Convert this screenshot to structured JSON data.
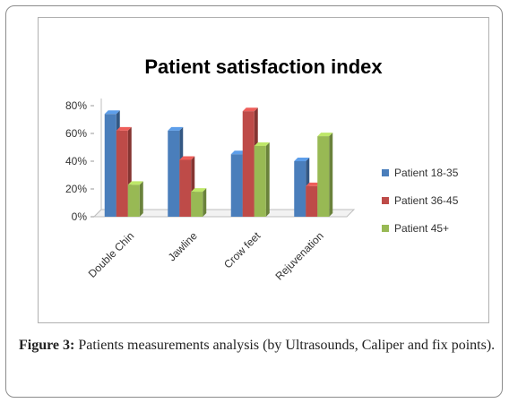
{
  "chart_data": {
    "type": "bar",
    "title": "Patient satisfaction index",
    "categories": [
      "Double Chin",
      "Jawline",
      "Crow feet",
      "Rejuvenation"
    ],
    "series": [
      {
        "name": "Patient 18-35",
        "values": [
          74,
          62,
          45,
          40
        ],
        "color": "#4a7ebb"
      },
      {
        "name": "Patient 36-45",
        "values": [
          62,
          41,
          76,
          22
        ],
        "color": "#be4b48"
      },
      {
        "name": "Patient 45+",
        "values": [
          23,
          18,
          51,
          58
        ],
        "color": "#98b954"
      }
    ],
    "yticks": [
      "0%",
      "20%",
      "40%",
      "60%",
      "80%"
    ],
    "ylim": [
      0,
      80
    ],
    "legend_position": "right",
    "grid": false
  },
  "caption": {
    "label": "Figure 3:",
    "text": " Patients measurements analysis (by Ultrasounds, Caliper and fix points)."
  }
}
